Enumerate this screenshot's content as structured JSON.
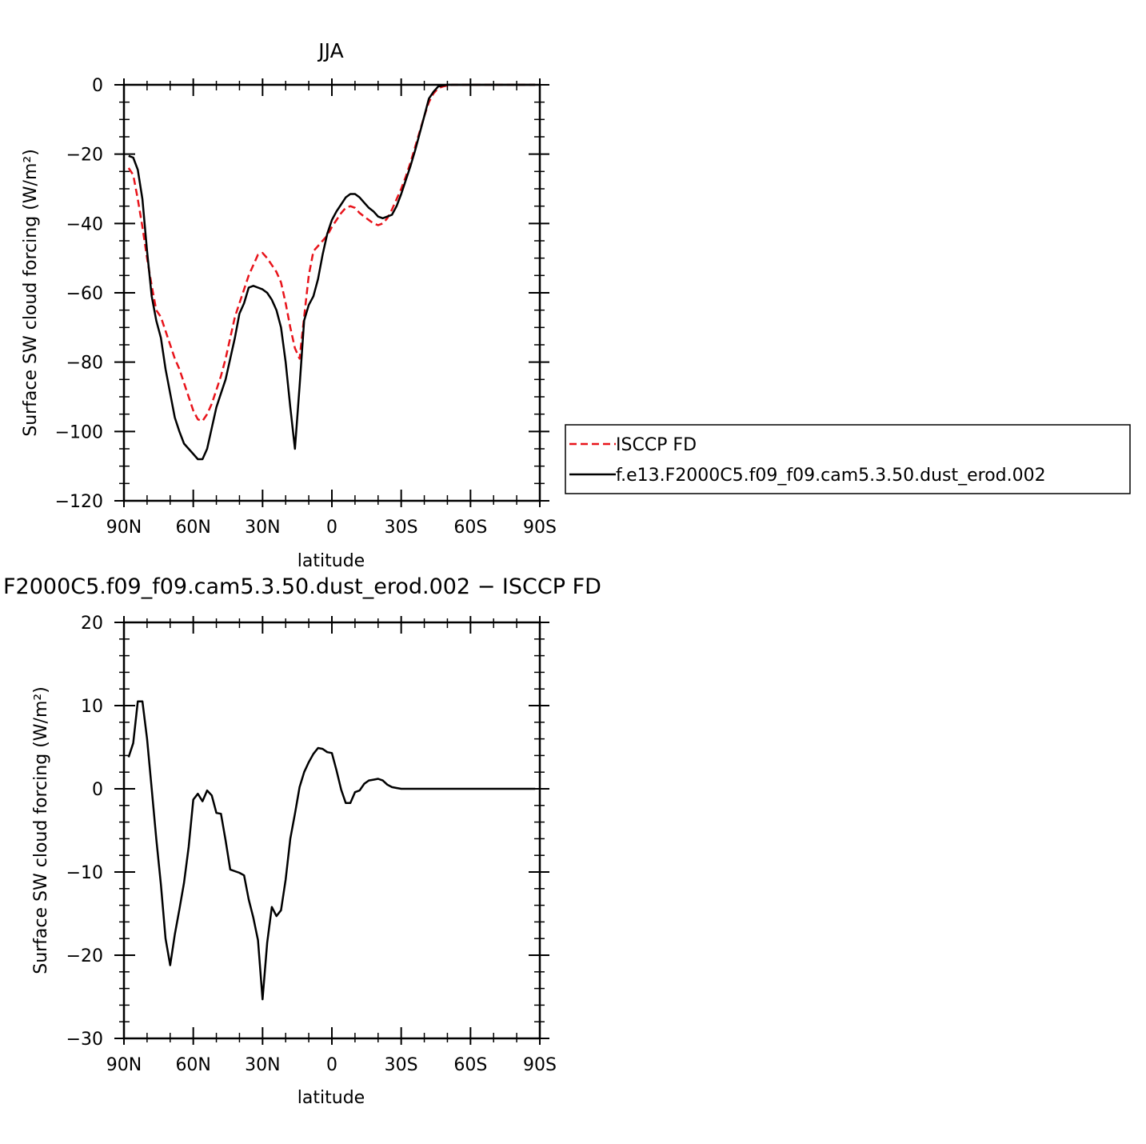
{
  "chart_data": [
    {
      "type": "line",
      "title": "JJA",
      "xlabel": "latitude",
      "ylabel": "Surface SW cloud forcing (W/m²)",
      "xlim": [
        90,
        -90
      ],
      "ylim": [
        -120,
        0
      ],
      "x_ticks": [
        90,
        60,
        30,
        0,
        -30,
        -60,
        -90
      ],
      "x_tick_labels": [
        "90N",
        "60N",
        "30N",
        "0",
        "30S",
        "60S",
        "90S"
      ],
      "y_ticks": [
        0,
        -20,
        -40,
        -60,
        -80,
        -100,
        -120
      ],
      "y_tick_labels": [
        "0",
        "−20",
        "−40",
        "−60",
        "−80",
        "−100",
        "−120"
      ],
      "legend_position": "right",
      "series": [
        {
          "name": "ISCCP FD",
          "color": "#e8141b",
          "dash": "dashed",
          "x": [
            88,
            86,
            84,
            82,
            80,
            78,
            76,
            74,
            72,
            70,
            68,
            66,
            64,
            62,
            60,
            58,
            56,
            54,
            52,
            50,
            48,
            46,
            44,
            42,
            40,
            38,
            36,
            34,
            32,
            30,
            28,
            26,
            24,
            22,
            20,
            18,
            16,
            14,
            12,
            10,
            8,
            6,
            4,
            2,
            0,
            -2,
            -4,
            -6,
            -8,
            -10,
            -12,
            -14,
            -16,
            -18,
            -20,
            -22,
            -24,
            -26,
            -28,
            -30,
            -32,
            -34,
            -36,
            -38,
            -40,
            -42,
            -44,
            -46,
            -48,
            -50,
            -52,
            -54,
            -56,
            -58,
            -60,
            -62,
            -64,
            -66,
            -68,
            -70,
            -72,
            -74,
            -76,
            -78,
            -80,
            -82,
            -84,
            -86,
            -88
          ],
          "values": [
            -24,
            -26,
            -33,
            -41,
            -50,
            -58,
            -65,
            -67,
            -71,
            -75,
            -79,
            -82,
            -86,
            -90,
            -94,
            -96.5,
            -97,
            -95,
            -92,
            -88,
            -84,
            -79,
            -73,
            -67,
            -63,
            -59,
            -55,
            -52,
            -49,
            -48.5,
            -50,
            -52,
            -54,
            -57,
            -63,
            -70,
            -76,
            -79,
            -67,
            -55,
            -48,
            -46.5,
            -45,
            -43.5,
            -41,
            -39,
            -37,
            -35.5,
            -35,
            -35.5,
            -37,
            -38,
            -39,
            -40,
            -40.5,
            -40,
            -38.5,
            -36,
            -33,
            -30,
            -26.5,
            -22.5,
            -18,
            -13.5,
            -9,
            -5,
            -2.5,
            -1,
            -0.5,
            -0.2,
            0,
            0,
            0,
            0,
            0,
            0,
            0,
            0,
            0,
            0,
            0,
            0,
            0,
            0,
            0,
            0,
            0,
            0,
            0
          ]
        },
        {
          "name": "f.e13.F2000C5.f09_f09.cam5.3.50.dust_erod.002",
          "color": "#000000",
          "dash": "solid",
          "x": [
            88,
            86,
            84,
            82,
            80,
            78,
            76,
            74,
            72,
            70,
            68,
            66,
            64,
            62,
            60,
            58,
            56,
            54,
            52,
            50,
            48,
            46,
            44,
            42,
            40,
            38,
            36,
            34,
            32,
            30,
            28,
            26,
            24,
            22,
            20,
            18,
            16,
            14,
            12,
            10,
            8,
            6,
            4,
            2,
            0,
            -2,
            -4,
            -6,
            -8,
            -10,
            -12,
            -14,
            -16,
            -18,
            -20,
            -22,
            -24,
            -26,
            -28,
            -30,
            -32,
            -34,
            -36,
            -38,
            -40,
            -42,
            -44,
            -46,
            -48,
            -50,
            -52,
            -54,
            -56,
            -58,
            -60,
            -62,
            -64,
            -66,
            -68,
            -70,
            -72,
            -74,
            -76,
            -78,
            -80,
            -82,
            -84,
            -86,
            -88
          ],
          "values": [
            -20.5,
            -21,
            -24.5,
            -33,
            -48,
            -61,
            -68,
            -73,
            -82,
            -89,
            -96,
            -100,
            -103.5,
            -105,
            -106.5,
            -108,
            -108,
            -105,
            -99,
            -93,
            -89,
            -85,
            -79,
            -73,
            -66,
            -63,
            -58.5,
            -58,
            -58.5,
            -59,
            -60,
            -62,
            -65,
            -70,
            -80,
            -93,
            -105,
            -87,
            -68,
            -63.5,
            -61,
            -56,
            -49,
            -43,
            -39,
            -36.5,
            -34.5,
            -32.5,
            -31.5,
            -31.5,
            -32.5,
            -34,
            -35.5,
            -36.5,
            -38,
            -38.5,
            -38,
            -37.5,
            -35,
            -31.5,
            -27.5,
            -23.5,
            -19,
            -14,
            -9,
            -4,
            -2,
            -0.5,
            -0.2,
            0,
            0,
            0,
            0,
            0,
            0,
            0,
            0,
            0,
            0,
            0,
            0,
            0,
            0,
            0,
            0,
            0,
            0,
            0,
            0
          ]
        }
      ]
    },
    {
      "type": "line",
      "title": "F2000C5.f09_f09.cam5.3.50.dust_erod.002 − ISCCP FD",
      "xlabel": "latitude",
      "ylabel": "Surface SW cloud forcing (W/m²)",
      "xlim": [
        90,
        -90
      ],
      "ylim": [
        -30,
        20
      ],
      "x_ticks": [
        90,
        60,
        30,
        0,
        -30,
        -60,
        -90
      ],
      "x_tick_labels": [
        "90N",
        "60N",
        "30N",
        "0",
        "30S",
        "60S",
        "90S"
      ],
      "y_ticks": [
        20,
        10,
        0,
        -10,
        -20,
        -30
      ],
      "y_tick_labels": [
        "20",
        "10",
        "0",
        "−10",
        "−20",
        "−30"
      ],
      "series": [
        {
          "color": "#000000",
          "dash": "solid",
          "x": [
            88,
            86,
            84,
            82,
            80,
            78,
            76,
            74,
            72,
            70,
            68,
            66,
            64,
            62,
            60,
            58,
            56,
            54,
            52,
            50,
            48,
            46,
            44,
            42,
            40,
            38,
            36,
            34,
            32,
            30,
            28,
            26,
            24,
            22,
            20,
            18,
            16,
            14,
            12,
            10,
            8,
            6,
            4,
            2,
            0,
            -2,
            -4,
            -6,
            -8,
            -10,
            -12,
            -14,
            -16,
            -18,
            -20,
            -22,
            -24,
            -26,
            -28,
            -30,
            -32,
            -34,
            -36,
            -38,
            -40,
            -42,
            -44,
            -46,
            -48,
            -50,
            -52,
            -54,
            -56,
            -58,
            -60,
            -62,
            -64,
            -66,
            -68,
            -70,
            -72,
            -74,
            -76,
            -78,
            -80,
            -82,
            -84,
            -86,
            -88
          ],
          "values": [
            3.8,
            5.5,
            10.5,
            10.5,
            6,
            0,
            -6,
            -11.5,
            -18,
            -21.2,
            -17.5,
            -14.5,
            -11.3,
            -7,
            -1.3,
            -0.6,
            -1.5,
            -0.2,
            -0.8,
            -2.9,
            -3,
            -6.2,
            -9.7,
            -9.9,
            -10.1,
            -10.4,
            -13.3,
            -15.5,
            -18.2,
            -25.3,
            -18.5,
            -14.2,
            -15.3,
            -14.6,
            -10.9,
            -6,
            -3,
            0.2,
            2,
            3.2,
            4.2,
            4.9,
            4.8,
            4.4,
            4.3,
            2.2,
            -0.1,
            -1.7,
            -1.7,
            -0.4,
            -0.2,
            0.6,
            1,
            1.1,
            1.2,
            1,
            0.5,
            0.2,
            0.1,
            0,
            0,
            0,
            0,
            0,
            0,
            0,
            0,
            0,
            0,
            0,
            0,
            0,
            0,
            0,
            0,
            0,
            0,
            0,
            0,
            0,
            0,
            0,
            0,
            0,
            0,
            0,
            0,
            0,
            0
          ]
        }
      ]
    }
  ]
}
